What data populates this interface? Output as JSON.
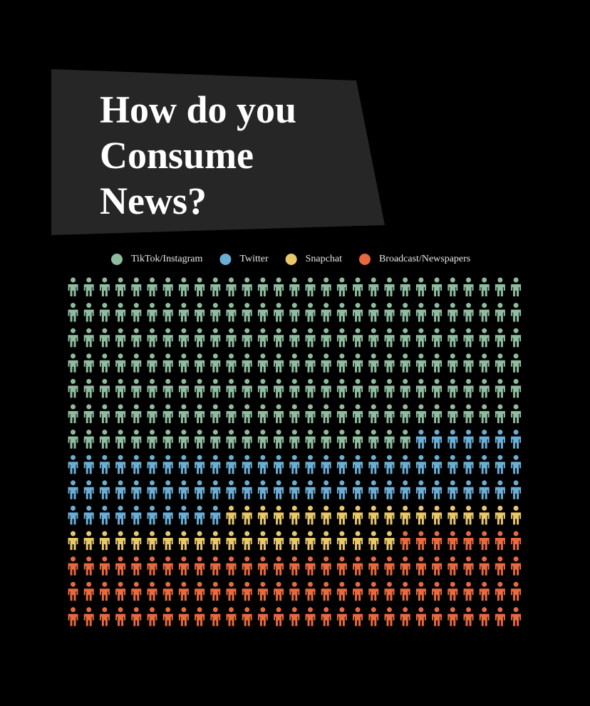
{
  "chart_data": {
    "type": "pictogram",
    "title": "How do you Consume News?",
    "categories": [
      "TikTok/Instagram",
      "Twitter",
      "Snapchat",
      "Broadcast/Newspapers"
    ],
    "values": [
      196,
      75,
      40,
      95
    ],
    "colors": [
      "#8fbc9f",
      "#6aaed6",
      "#e9c76b",
      "#e8693f"
    ]
  }
}
